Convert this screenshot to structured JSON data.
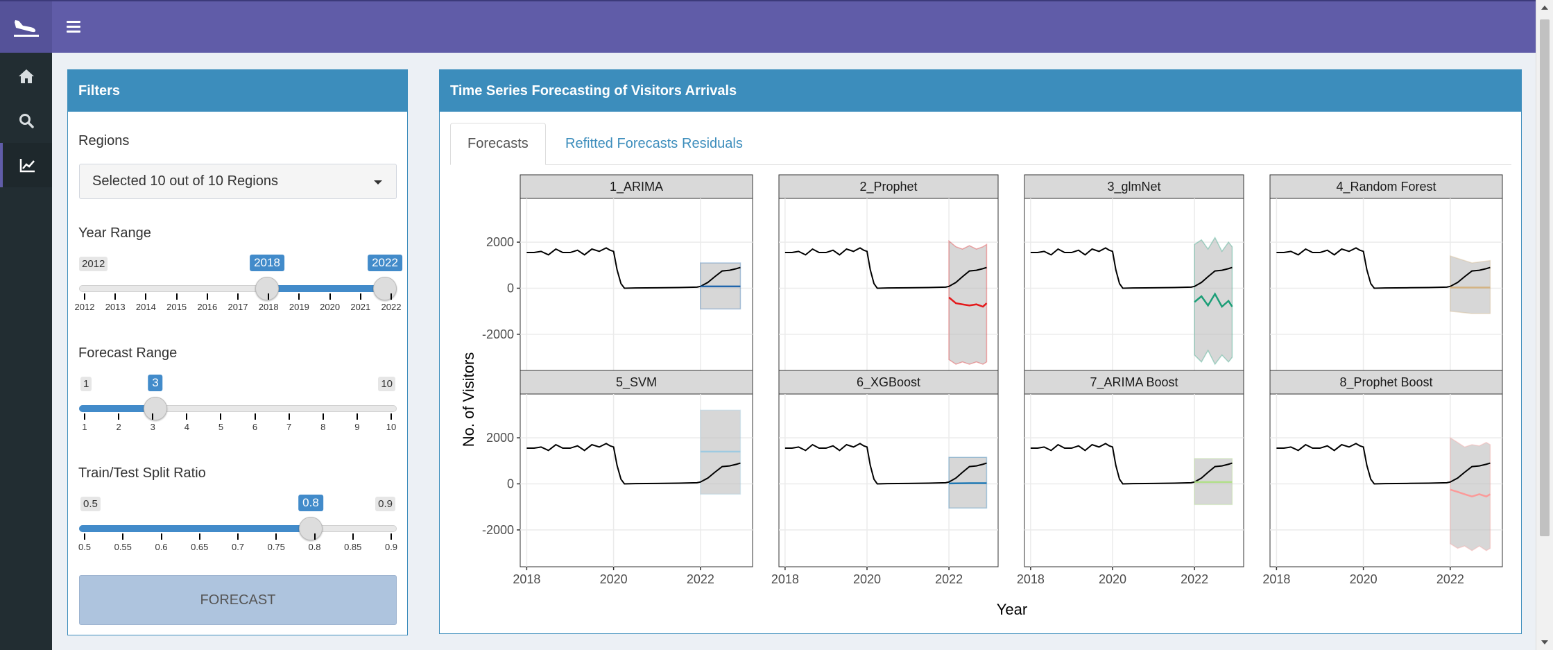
{
  "header": {
    "logo_icon": "airplane-landing-icon",
    "menu_icon": "hamburger-icon"
  },
  "sidebar": {
    "items": [
      {
        "icon": "home-icon"
      },
      {
        "icon": "search-icon"
      },
      {
        "icon": "line-chart-icon",
        "active": true
      }
    ]
  },
  "filters": {
    "title": "Filters",
    "regions_label": "Regions",
    "regions_value": "Selected 10 out of 10 Regions",
    "year_label": "Year Range",
    "year_min": "2012",
    "year_max": "2022",
    "year_low": "2018",
    "year_high": "2022",
    "year_ticks": [
      "2012",
      "2013",
      "2014",
      "2015",
      "2016",
      "2017",
      "2018",
      "2019",
      "2020",
      "2021",
      "2022"
    ],
    "forecast_label": "Forecast Range",
    "forecast_min": "1",
    "forecast_max": "10",
    "forecast_value": "3",
    "forecast_ticks": [
      "1",
      "2",
      "3",
      "4",
      "5",
      "6",
      "7",
      "8",
      "9",
      "10"
    ],
    "split_label": "Train/Test Split Ratio",
    "split_min": "0.5",
    "split_max": "0.9",
    "split_value": "0.8",
    "split_ticks": [
      "0.5",
      "0.55",
      "0.6",
      "0.65",
      "0.7",
      "0.75",
      "0.8",
      "0.85",
      "0.9"
    ],
    "button": "FORECAST"
  },
  "main": {
    "title": "Time Series Forecasting of Visitors Arrivals",
    "tabs": [
      "Forecasts",
      "Refitted Forecasts",
      "Residuals"
    ]
  },
  "chart_data": {
    "type": "line",
    "title": "",
    "xlabel": "Year",
    "ylabel": "No. of Visitors",
    "xlim": [
      2017.85,
      2023.2
    ],
    "ylim": [
      -3600,
      3900
    ],
    "x_ticks": [
      "2018",
      "2020",
      "2022"
    ],
    "y_ticks": [
      "2000",
      "0",
      "-2000"
    ],
    "actual": {
      "x": [
        2018.0,
        2018.17,
        2018.33,
        2018.5,
        2018.67,
        2018.83,
        2019.0,
        2019.17,
        2019.33,
        2019.5,
        2019.67,
        2019.83,
        2019.92,
        2020.0,
        2020.08,
        2020.17,
        2020.25,
        2020.5,
        2021.0,
        2021.5,
        2021.92,
        2022.0,
        2022.17,
        2022.33,
        2022.5,
        2022.67,
        2022.83,
        2022.92
      ],
      "y": [
        1550,
        1550,
        1600,
        1450,
        1700,
        1550,
        1550,
        1650,
        1450,
        1700,
        1600,
        1750,
        1650,
        1600,
        800,
        200,
        0,
        10,
        20,
        30,
        50,
        80,
        250,
        500,
        750,
        780,
        850,
        900
      ]
    },
    "panels": [
      {
        "label": "1_ARIMA",
        "color": "#2166ac",
        "x": [
          2022.0,
          2022.5,
          2022.92
        ],
        "y": [
          80,
          80,
          80
        ],
        "lower": [
          -900,
          -900,
          -900
        ],
        "upper": [
          1100,
          1100,
          1100
        ]
      },
      {
        "label": "2_Prophet",
        "color": "#e41a1c",
        "x": [
          2022.0,
          2022.17,
          2022.33,
          2022.5,
          2022.67,
          2022.83,
          2022.92
        ],
        "y": [
          -400,
          -650,
          -700,
          -750,
          -700,
          -800,
          -650
        ],
        "lower": [
          -3100,
          -3300,
          -3200,
          -3300,
          -3200,
          -3300,
          -3200
        ],
        "upper": [
          2050,
          1800,
          1700,
          1850,
          1700,
          1800,
          1900
        ]
      },
      {
        "label": "3_glmNet",
        "color": "#1b9e77",
        "x": [
          2022.0,
          2022.17,
          2022.33,
          2022.5,
          2022.67,
          2022.83,
          2022.92
        ],
        "y": [
          -600,
          -350,
          -750,
          -250,
          -800,
          -550,
          -800
        ],
        "lower": [
          -2900,
          -3200,
          -2700,
          -3300,
          -2900,
          -3200,
          -3000
        ],
        "upper": [
          1900,
          2100,
          1700,
          2200,
          1600,
          2000,
          1800
        ]
      },
      {
        "label": "4_Random Forest",
        "color": "#d4b483",
        "x": [
          2022.0,
          2022.5,
          2022.92
        ],
        "y": [
          30,
          30,
          30
        ],
        "lower": [
          -1000,
          -1100,
          -1100
        ],
        "upper": [
          1400,
          1100,
          1200
        ]
      },
      {
        "label": "5_SVM",
        "color": "#9ecae1",
        "x": [
          2022.0,
          2022.5,
          2022.92
        ],
        "y": [
          1400,
          1400,
          1400
        ],
        "lower": [
          -450,
          -450,
          -450
        ],
        "upper": [
          3200,
          3200,
          3200
        ]
      },
      {
        "label": "6_XGBoost",
        "color": "#1f78b4",
        "x": [
          2022.0,
          2022.5,
          2022.92
        ],
        "y": [
          20,
          30,
          30
        ],
        "lower": [
          -1050,
          -1050,
          -1050
        ],
        "upper": [
          1150,
          1150,
          1150
        ]
      },
      {
        "label": "7_ARIMA Boost",
        "color": "#b2df8a",
        "x": [
          2022.0,
          2022.5,
          2022.92
        ],
        "y": [
          80,
          80,
          80
        ],
        "lower": [
          -900,
          -900,
          -900
        ],
        "upper": [
          1100,
          1100,
          1100
        ]
      },
      {
        "label": "8_Prophet Boost",
        "color": "#fb9a99",
        "x": [
          2022.0,
          2022.17,
          2022.33,
          2022.5,
          2022.67,
          2022.83,
          2022.92
        ],
        "y": [
          -250,
          -350,
          -450,
          -550,
          -450,
          -550,
          -450
        ],
        "lower": [
          -2600,
          -2800,
          -2700,
          -2900,
          -2700,
          -2900,
          -2800
        ],
        "upper": [
          2000,
          1800,
          1600,
          1700,
          1650,
          1800,
          1700
        ]
      }
    ]
  }
}
